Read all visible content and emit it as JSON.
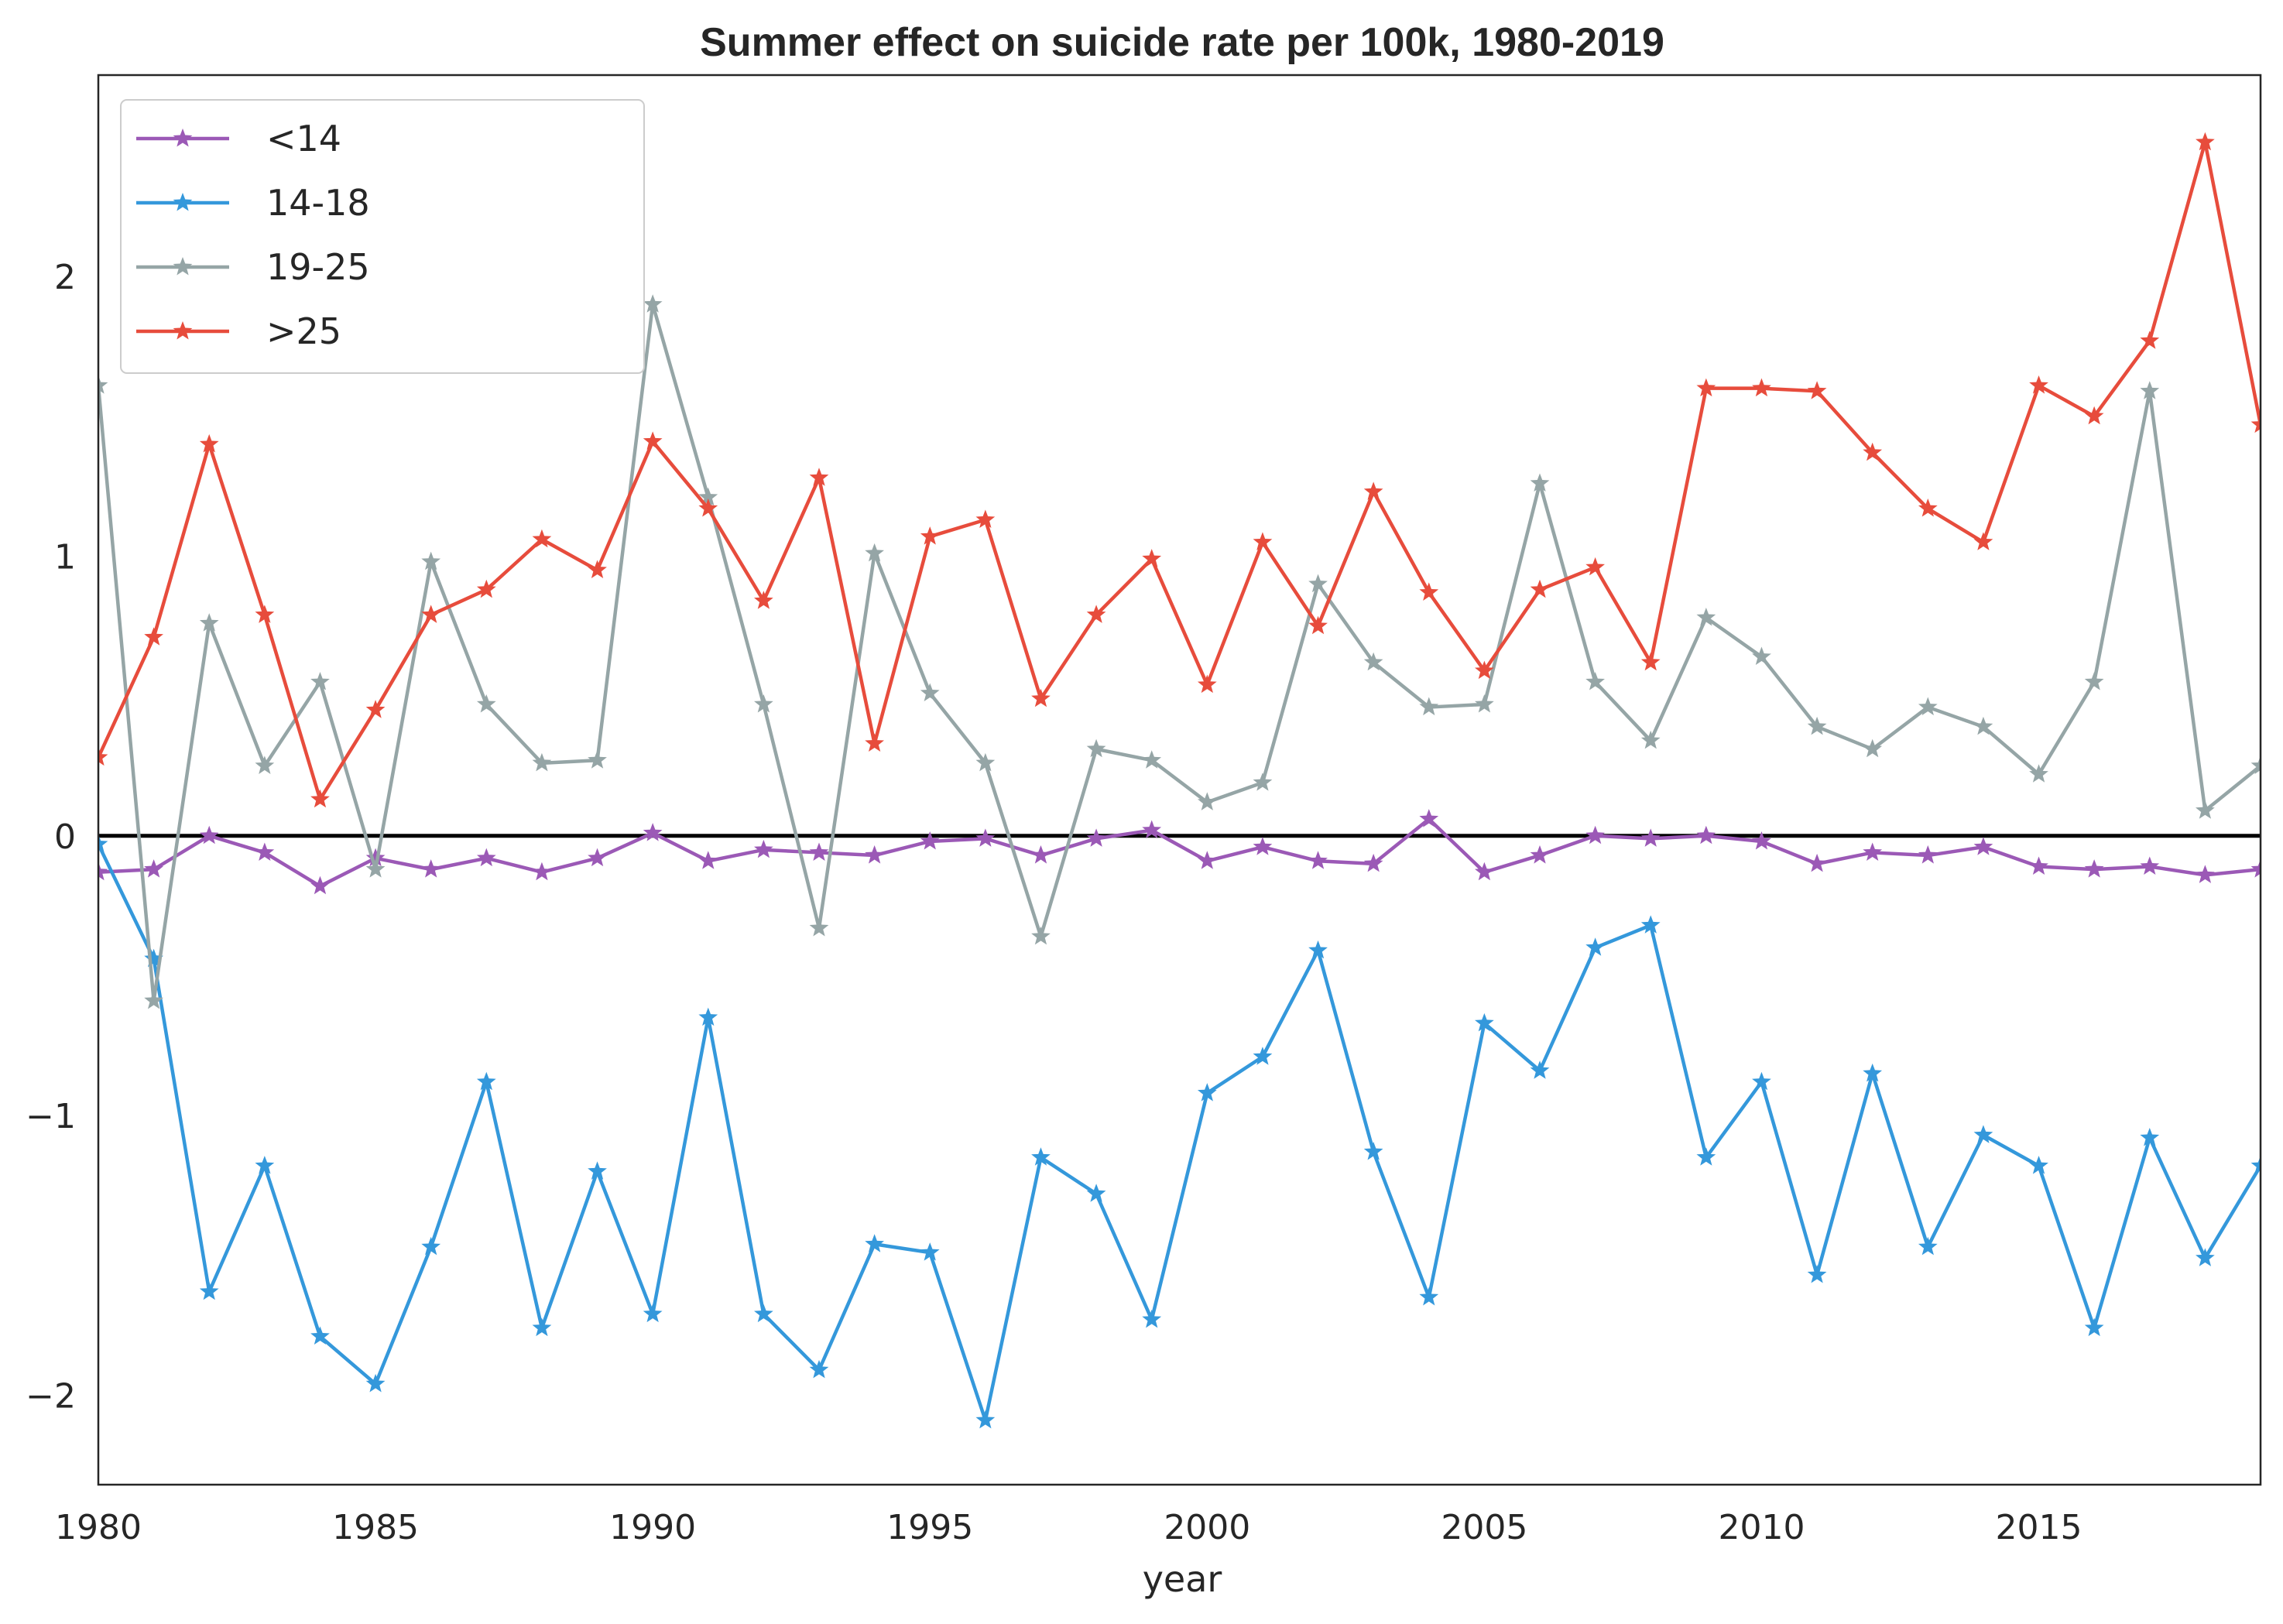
{
  "chart_data": {
    "type": "line",
    "title": "Summer effect on suicide rate per 100k, 1980-2019",
    "xlabel": "year",
    "ylabel": "",
    "xlim": [
      1980,
      2019
    ],
    "ylim": [
      -2.32,
      2.72
    ],
    "x_ticks": [
      1980,
      1985,
      1990,
      1995,
      2000,
      2005,
      2010,
      2015
    ],
    "x_tick_labels": [
      "1980",
      "1985",
      "1990",
      "1995",
      "2000",
      "2005",
      "2010",
      "2015"
    ],
    "y_ticks": [
      -2,
      -1,
      0,
      1,
      2
    ],
    "y_tick_labels": [
      "−2",
      "−1",
      "0",
      "1",
      "2"
    ],
    "grid": false,
    "legend_position": "top-left",
    "reference_line": {
      "y": 0,
      "color": "#000000"
    },
    "x": [
      1980,
      1981,
      1982,
      1983,
      1984,
      1985,
      1986,
      1987,
      1988,
      1989,
      1990,
      1991,
      1992,
      1993,
      1994,
      1995,
      1996,
      1997,
      1998,
      1999,
      2000,
      2001,
      2002,
      2003,
      2004,
      2005,
      2006,
      2007,
      2008,
      2009,
      2010,
      2011,
      2012,
      2013,
      2014,
      2015,
      2016,
      2017,
      2018,
      2019
    ],
    "series": [
      {
        "name": "<14",
        "color": "#9b59b6",
        "marker": "star",
        "values": [
          -0.13,
          -0.12,
          0.0,
          -0.06,
          -0.18,
          -0.08,
          -0.12,
          -0.08,
          -0.13,
          -0.08,
          0.01,
          -0.09,
          -0.05,
          -0.06,
          -0.07,
          -0.02,
          -0.01,
          -0.07,
          -0.01,
          0.02,
          -0.09,
          -0.04,
          -0.09,
          -0.1,
          0.06,
          -0.13,
          -0.07,
          0.0,
          -0.01,
          0.0,
          -0.02,
          -0.1,
          -0.06,
          -0.07,
          -0.04,
          -0.11,
          -0.12,
          -0.11,
          -0.14,
          -0.12
        ]
      },
      {
        "name": "14-18",
        "color": "#3498db",
        "marker": "star",
        "values": [
          -0.03,
          -0.44,
          -1.63,
          -1.18,
          -1.79,
          -1.96,
          -1.47,
          -0.88,
          -1.76,
          -1.2,
          -1.71,
          -0.65,
          -1.71,
          -1.91,
          -1.46,
          -1.49,
          -2.09,
          -1.15,
          -1.28,
          -1.73,
          -0.92,
          -0.79,
          -0.41,
          -1.13,
          -1.65,
          -0.67,
          -0.84,
          -0.4,
          -0.32,
          -1.15,
          -0.88,
          -1.57,
          -0.85,
          -1.47,
          -1.07,
          -1.18,
          -1.76,
          -1.08,
          -1.51,
          -1.18
        ]
      },
      {
        "name": "19-25",
        "color": "#95a5a6",
        "marker": "star",
        "values": [
          1.61,
          -0.59,
          0.76,
          0.25,
          0.55,
          -0.12,
          0.98,
          0.47,
          0.26,
          0.27,
          1.9,
          1.21,
          0.47,
          -0.33,
          1.01,
          0.51,
          0.26,
          -0.36,
          0.31,
          0.27,
          0.12,
          0.19,
          0.9,
          0.62,
          0.46,
          0.47,
          1.26,
          0.55,
          0.34,
          0.78,
          0.64,
          0.39,
          0.31,
          0.46,
          0.39,
          0.22,
          0.55,
          1.59,
          0.09,
          0.25
        ]
      },
      {
        "name": ">25",
        "color": "#e74c3c",
        "marker": "star",
        "values": [
          0.28,
          0.71,
          1.4,
          0.79,
          0.13,
          0.45,
          0.79,
          0.88,
          1.06,
          0.95,
          1.41,
          1.17,
          0.84,
          1.28,
          0.33,
          1.07,
          1.13,
          0.49,
          0.79,
          0.99,
          0.54,
          1.05,
          0.75,
          1.23,
          0.87,
          0.59,
          0.88,
          0.96,
          0.62,
          1.6,
          1.6,
          1.59,
          1.37,
          1.17,
          1.05,
          1.61,
          1.5,
          1.77,
          2.48,
          1.47
        ]
      }
    ]
  }
}
